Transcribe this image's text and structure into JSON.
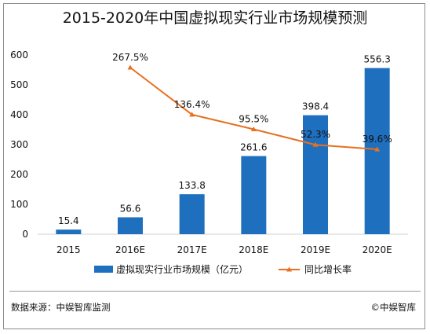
{
  "title": "2015-2020年中国虚拟现实行业市场规模预测",
  "footer": {
    "source": "数据来源：中娱智库监测",
    "copyright": "©中娱智库"
  },
  "chart_data": {
    "type": "bar",
    "title": "2015-2020年中国虚拟现实行业市场规模预测",
    "categories": [
      "2015",
      "2016E",
      "2017E",
      "2018E",
      "2019E",
      "2020E"
    ],
    "ylim": [
      0,
      600
    ],
    "yticks": [
      "0",
      "100",
      "200",
      "300",
      "400",
      "500",
      "600"
    ],
    "series": [
      {
        "name": "虚拟现实行业市场规模（亿元）",
        "type": "bar",
        "color": "#1f6fbf",
        "values": [
          15.4,
          56.6,
          133.8,
          261.6,
          398.4,
          556.3
        ],
        "labels": [
          "15.4",
          "56.6",
          "133.8",
          "261.6",
          "398.4",
          "556.3"
        ]
      },
      {
        "name": "同比增长率",
        "type": "line",
        "color": "#e8701f",
        "values": [
          null,
          267.5,
          136.4,
          95.5,
          52.3,
          39.6
        ],
        "labels": [
          "",
          "267.5%",
          "136.4%",
          "95.5%",
          "52.3%",
          "39.6%"
        ]
      }
    ],
    "legend_position": "bottom",
    "grid": false
  }
}
